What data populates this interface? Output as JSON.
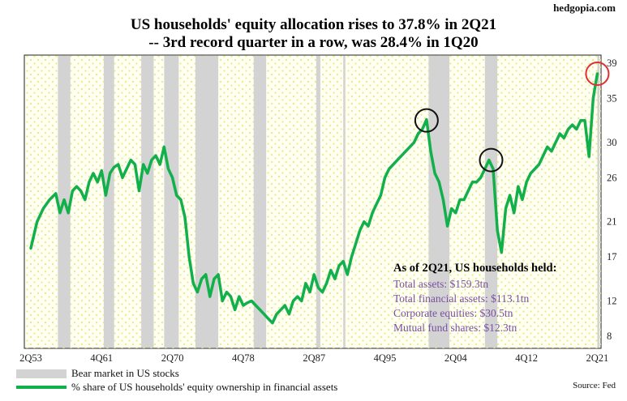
{
  "header": {
    "brand": "hedgopia.com",
    "title_line1": "US households' equity allocation rises to 37.8% in 2Q21",
    "title_line2": "-- 3rd record quarter in a row, was 28.4% in 1Q20"
  },
  "annotation": {
    "heading": "As of 2Q21, US households held:",
    "lines": [
      "Total assets: $159.3tn",
      "Total financial assets: $113.1tn",
      "Corporate equities: $30.5tn",
      "Mutual fund shares: $12.3tn"
    ]
  },
  "legend": {
    "bear_label": "Bear market in US stocks",
    "line_label": "% share of US households' equity ownership in financial assets"
  },
  "source": "Source: Fed",
  "colors": {
    "line": "#12b04a",
    "bear_band": "#d3d3d3",
    "plot_bg": "#fffff2",
    "dots": "#e4ea8a",
    "annotation_text": "#7a4fa3",
    "circle_black": "#111111",
    "circle_red": "#e03030"
  },
  "chart_data": {
    "type": "line",
    "x_unit": "quarter index (2Q53 = 0)",
    "xlim": [
      0,
      273
    ],
    "ylim": [
      8,
      39
    ],
    "x_tick_labels": [
      "2Q53",
      "4Q61",
      "2Q70",
      "4Q78",
      "2Q87",
      "4Q95",
      "2Q04",
      "4Q12",
      "2Q21"
    ],
    "x_tick_positions": [
      0,
      34,
      68,
      102,
      136,
      170,
      204,
      238,
      272
    ],
    "y_ticks": [
      8,
      12,
      17,
      21,
      26,
      30,
      35,
      39
    ],
    "grid": false,
    "legend_position": "bottom-left",
    "bear_markets": [
      [
        13,
        19
      ],
      [
        35,
        40
      ],
      [
        53,
        59
      ],
      [
        64,
        71
      ],
      [
        79,
        90
      ],
      [
        107,
        113
      ],
      [
        137,
        139
      ],
      [
        150,
        151
      ],
      [
        191,
        201
      ],
      [
        218,
        224
      ],
      [
        272,
        273
      ]
    ],
    "highlight_circles": [
      {
        "x": 190,
        "y": 32.5,
        "color": "black"
      },
      {
        "x": 221,
        "y": 28.0,
        "color": "black"
      },
      {
        "x": 272,
        "y": 37.8,
        "color": "red"
      }
    ],
    "series": [
      {
        "x": [
          0,
          3,
          6,
          9,
          12,
          14,
          16,
          18,
          20,
          22,
          24,
          26,
          28,
          30,
          32,
          34,
          36,
          38,
          40,
          42,
          44,
          46,
          48,
          50,
          52,
          54,
          56,
          58,
          60,
          62,
          64,
          66,
          68,
          70,
          72,
          74,
          76,
          78,
          80,
          82,
          84,
          86,
          88,
          90,
          92,
          94,
          96,
          98,
          100,
          102,
          104,
          106,
          108,
          110,
          112,
          114,
          116,
          118,
          120,
          122,
          124,
          126,
          128,
          130,
          132,
          134,
          136,
          138,
          140,
          142,
          144,
          146,
          148,
          150,
          152,
          154,
          156,
          158,
          160,
          162,
          164,
          166,
          168,
          170,
          172,
          174,
          176,
          178,
          180,
          182,
          184,
          186,
          188,
          190,
          192,
          194,
          196,
          198,
          200,
          202,
          204,
          206,
          208,
          210,
          212,
          214,
          216,
          218,
          220,
          222,
          224,
          226,
          228,
          230,
          232,
          234,
          236,
          238,
          240,
          242,
          244,
          246,
          248,
          250,
          252,
          254,
          256,
          258,
          260,
          262,
          264,
          266,
          268,
          270,
          272
        ],
        "y": [
          18.0,
          21.0,
          22.5,
          23.5,
          24.2,
          22.0,
          23.5,
          22.0,
          24.5,
          25.0,
          24.5,
          23.5,
          25.5,
          26.5,
          25.5,
          26.8,
          24.0,
          26.5,
          27.2,
          27.5,
          26.0,
          27.0,
          28.0,
          27.5,
          24.5,
          27.5,
          26.5,
          28.0,
          28.5,
          27.5,
          29.5,
          27.0,
          26.0,
          24.0,
          23.5,
          21.5,
          17.0,
          14.0,
          13.0,
          14.5,
          15.0,
          12.5,
          14.5,
          15.0,
          12.0,
          13.0,
          12.5,
          11.0,
          12.5,
          11.5,
          11.8,
          12.0,
          11.5,
          11.0,
          10.5,
          10.0,
          9.5,
          10.5,
          11.0,
          11.5,
          10.5,
          12.0,
          12.5,
          12.0,
          14.0,
          13.0,
          15.0,
          13.5,
          13.0,
          14.0,
          15.5,
          14.5,
          16.0,
          16.5,
          15.0,
          17.0,
          18.5,
          20.0,
          21.0,
          20.5,
          22.0,
          23.0,
          24.0,
          26.0,
          27.0,
          27.5,
          28.0,
          28.5,
          29.0,
          29.5,
          30.0,
          31.0,
          31.5,
          32.6,
          29.0,
          26.5,
          25.5,
          23.5,
          20.5,
          22.5,
          22.0,
          23.5,
          23.5,
          24.5,
          25.5,
          25.5,
          26.0,
          27.0,
          28.0,
          27.0,
          20.0,
          17.5,
          22.5,
          24.0,
          22.0,
          25.0,
          23.5,
          25.5,
          26.5,
          27.0,
          27.5,
          28.5,
          29.5,
          29.0,
          30.0,
          31.0,
          30.5,
          31.5,
          32.0,
          31.5,
          32.5,
          32.5,
          28.4,
          35.0,
          37.8
        ]
      }
    ]
  }
}
